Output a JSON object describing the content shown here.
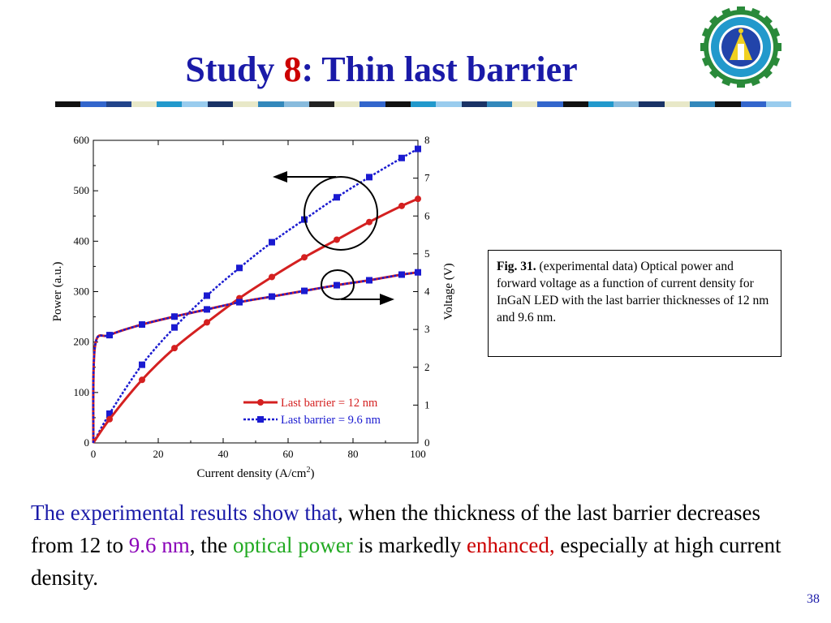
{
  "slide": {
    "title_prefix": "Study ",
    "title_number": "8",
    "title_suffix": ": Thin last barrier",
    "page_number": "38",
    "title_bar_colors": [
      "#111111",
      "#3366cc",
      "#22448a",
      "#e8e8c8",
      "#2299cc",
      "#99ccee",
      "#1a3366",
      "#e8e8c8",
      "#3388bb",
      "#88bbdd",
      "#222222",
      "#e8e8c8",
      "#3366cc",
      "#111111",
      "#2299cc",
      "#99ccee",
      "#1a3366",
      "#3388bb",
      "#e8e8c8",
      "#3366cc",
      "#111111",
      "#2299cc",
      "#88bbdd",
      "#1a3366",
      "#e8e8c8",
      "#3388bb",
      "#111111",
      "#3366cc",
      "#99ccee"
    ]
  },
  "caption": {
    "label": "Fig. 31.",
    "text": " (experimental data) Optical power and forward voltage as a function of current density for InGaN LED with the last barrier thicknesses  of 12 nm and 9.6 nm."
  },
  "body_text": {
    "part1": "The experimental results show that",
    "part2": ", when the thickness of the last barrier decreases from 12  to ",
    "part3": "9.6 nm",
    "part4": ", the ",
    "part5": "optical power",
    "part6": " is markedly ",
    "part7": "enhanced,",
    "part8": " especially at high current density."
  },
  "colors": {
    "title": "#1a1aa8",
    "red_series": "#d42020",
    "blue_series": "#1a1ad0"
  },
  "chart_data": {
    "type": "line",
    "xlabel": "Current density (A/cm",
    "xlabel_sup": "2",
    "xlabel_end": ")",
    "ylabel_left": "Power (a.u.)",
    "ylabel_right": "Voltage (V)",
    "xlim": [
      0,
      100
    ],
    "ylim_left": [
      0,
      600
    ],
    "ylim_right": [
      0,
      8
    ],
    "x_ticks": [
      0,
      20,
      40,
      60,
      80,
      100
    ],
    "y_left_ticks": [
      0,
      100,
      200,
      300,
      400,
      500,
      600
    ],
    "y_right_ticks": [
      0,
      1,
      2,
      3,
      4,
      5,
      6,
      7,
      8
    ],
    "legend": [
      {
        "name": "Last barrier = 12 nm",
        "color": "#d42020",
        "style": "solid",
        "marker": "circle"
      },
      {
        "name": "Last barrier = 9.6 nm",
        "color": "#1a1ad0",
        "style": "dotted",
        "marker": "square"
      }
    ],
    "series": [
      {
        "name": "Last barrier = 12 nm",
        "axis": "left",
        "color": "#d42020",
        "style": "solid",
        "marker": "circle",
        "x": [
          0,
          5,
          15,
          25,
          35,
          45,
          55,
          65,
          75,
          85,
          95,
          100
        ],
        "y": [
          0,
          47,
          125,
          188,
          239,
          287,
          329,
          368,
          403,
          438,
          470,
          484
        ]
      },
      {
        "name": "Last barrier = 9.6 nm",
        "axis": "left",
        "color": "#1a1ad0",
        "style": "dotted",
        "marker": "square",
        "x": [
          0,
          5,
          15,
          25,
          35,
          45,
          55,
          65,
          75,
          85,
          95,
          100
        ],
        "y": [
          0,
          58,
          155,
          229,
          292,
          347,
          398,
          443,
          487,
          527,
          565,
          583
        ]
      },
      {
        "name": "Last barrier = 12 nm",
        "axis": "right",
        "color": "#d42020",
        "style": "solid",
        "marker": "circle",
        "x": [
          0,
          0.5,
          5,
          15,
          25,
          35,
          45,
          55,
          65,
          75,
          85,
          95,
          100
        ],
        "y": [
          0,
          2.55,
          2.85,
          3.13,
          3.34,
          3.53,
          3.72,
          3.87,
          4.02,
          4.17,
          4.3,
          4.45,
          4.51
        ]
      },
      {
        "name": "Last barrier = 9.6 nm",
        "axis": "right",
        "color": "#1a1ad0",
        "style": "dotted",
        "marker": "square",
        "x": [
          0,
          0.5,
          5,
          15,
          25,
          35,
          45,
          55,
          65,
          75,
          85,
          95,
          100
        ],
        "y": [
          0,
          2.55,
          2.85,
          3.13,
          3.34,
          3.53,
          3.72,
          3.87,
          4.02,
          4.17,
          4.3,
          4.45,
          4.51
        ]
      }
    ],
    "annotations": [
      {
        "type": "circle",
        "target": "power curves",
        "arrow": "left"
      },
      {
        "type": "circle",
        "target": "voltage curves",
        "arrow": "right"
      }
    ]
  }
}
